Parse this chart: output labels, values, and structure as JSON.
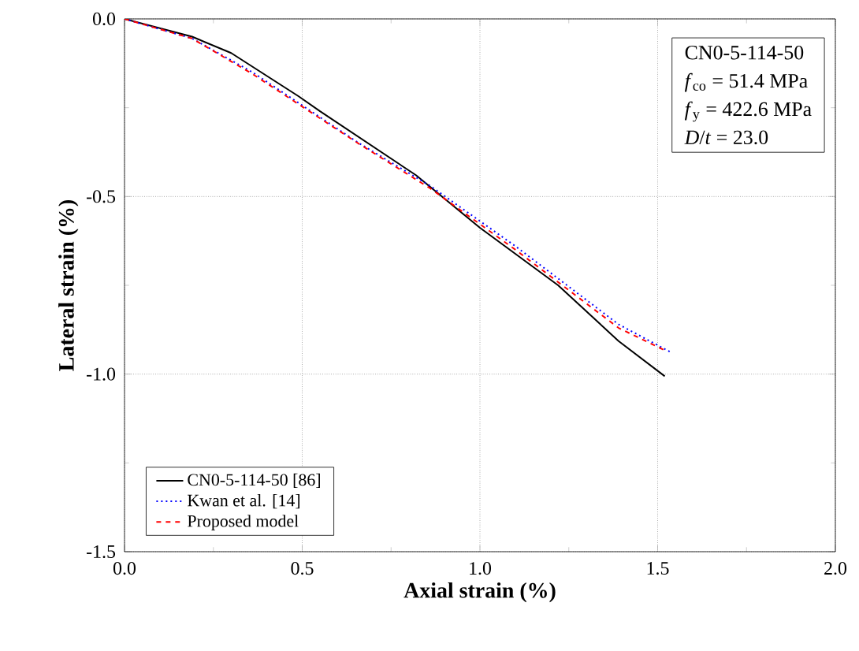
{
  "chart_data": {
    "type": "line",
    "xlabel": "Axial strain (%)",
    "ylabel": "Lateral strain (%)",
    "xlim": [
      0,
      2
    ],
    "ylim": [
      -1.5,
      0
    ],
    "xticks": [
      {
        "value": 0,
        "label": "0.0"
      },
      {
        "value": 0.5,
        "label": "0.5"
      },
      {
        "value": 1,
        "label": "1.0"
      },
      {
        "value": 1.5,
        "label": "1.5"
      },
      {
        "value": 2,
        "label": "2.0"
      }
    ],
    "yticks": [
      {
        "value": -1.5,
        "label": "-1.5"
      },
      {
        "value": -1,
        "label": "-1.0"
      },
      {
        "value": -0.5,
        "label": "-0.5"
      },
      {
        "value": 0,
        "label": "0.0"
      }
    ],
    "grid": true,
    "legend": "bottom left",
    "marker": "none",
    "annotations": [
      "CN0-5-114-50",
      "*f*$_{co}$ = 51.4 MPa",
      "*f*$_{y}$ = 422.6 MPa",
      "*D*/*t* = 23.0"
    ],
    "series": [
      {
        "name": "CN0-5-114-50 [86]",
        "color": "#000000",
        "line_style": "solid",
        "x": [
          0,
          0.19,
          0.3,
          0.49,
          0.55,
          0.82,
          1.0,
          1.22,
          1.39,
          1.52
        ],
        "values": [
          0,
          -0.05,
          -0.096,
          -0.218,
          -0.26,
          -0.44,
          -0.588,
          -0.75,
          -0.907,
          -1.006
        ]
      },
      {
        "name": "Kwan et al. [14]",
        "color": "#0000ff",
        "line_style": "dotted",
        "x": [
          0,
          0.19,
          0.36,
          0.66,
          0.86,
          1.1,
          1.39,
          1.54
        ],
        "values": [
          0,
          -0.055,
          -0.15,
          -0.35,
          -0.47,
          -0.64,
          -0.86,
          -0.94
        ]
      },
      {
        "name": "Proposed model",
        "color": "#ff0000",
        "line_style": "dashed",
        "x": [
          0,
          0.19,
          0.36,
          0.66,
          0.86,
          1.1,
          1.39,
          1.52
        ],
        "values": [
          0,
          -0.055,
          -0.155,
          -0.352,
          -0.477,
          -0.65,
          -0.87,
          -0.933
        ]
      }
    ]
  }
}
